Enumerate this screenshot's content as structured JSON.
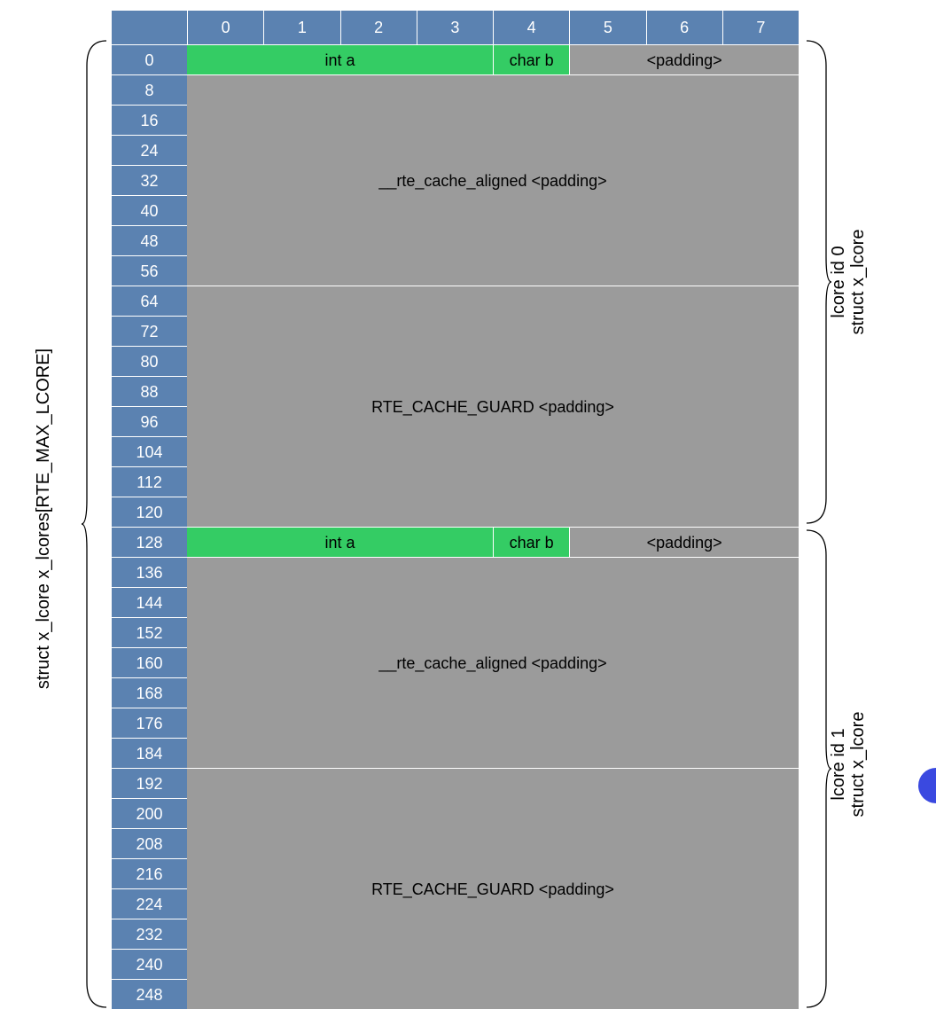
{
  "column_headers": [
    "0",
    "1",
    "2",
    "3",
    "4",
    "5",
    "6",
    "7"
  ],
  "row_offsets": [
    "0",
    "8",
    "16",
    "24",
    "32",
    "40",
    "48",
    "56",
    "64",
    "72",
    "80",
    "88",
    "96",
    "104",
    "112",
    "120",
    "128",
    "136",
    "144",
    "152",
    "160",
    "168",
    "176",
    "184",
    "192",
    "200",
    "208",
    "216",
    "224",
    "232",
    "240",
    "248"
  ],
  "lcore_blocks": [
    {
      "int_a": "int a",
      "char_b": "char b",
      "padding": "<padding>",
      "cache_aligned": "__rte_cache_aligned <padding>",
      "cache_guard": "RTE_CACHE_GUARD <padding>",
      "brace_label_line1": "lcore id 0",
      "brace_label_line2": "struct x_lcore"
    },
    {
      "int_a": "int a",
      "char_b": "char b",
      "padding": "<padding>",
      "cache_aligned": "__rte_cache_aligned <padding>",
      "cache_guard": "RTE_CACHE_GUARD <padding>",
      "brace_label_line1": "lcore id 1",
      "brace_label_line2": "struct x_lcore"
    }
  ],
  "array_label": "struct x_lcore x_lcores[RTE_MAX_LCORE]",
  "colors": {
    "header_blue": "#5b82b1",
    "field_green": "#34cc64",
    "padding_gray": "#9b9b9b"
  }
}
